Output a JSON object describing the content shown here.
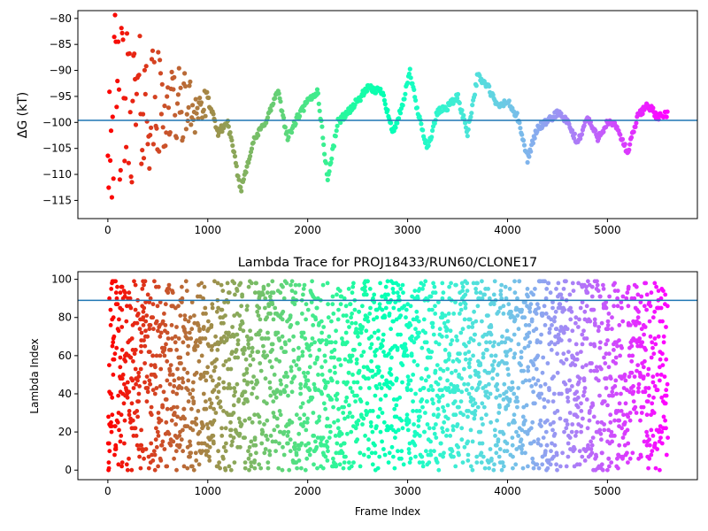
{
  "chart_data": [
    {
      "type": "scatter",
      "title": "",
      "xlabel": "",
      "ylabel": "ΔG (kT)",
      "xlim": [
        -300,
        5900
      ],
      "ylim": [
        -118.5,
        -78.5
      ],
      "x_ticks": [
        0,
        1000,
        2000,
        3000,
        4000,
        5000
      ],
      "x_tick_labels": [
        "0",
        "1000",
        "2000",
        "3000",
        "4000",
        "5000"
      ],
      "y_ticks": [
        -115,
        -110,
        -105,
        -100,
        -95,
        -90,
        -85,
        -80
      ],
      "y_tick_labels": [
        "−115",
        "−110",
        "−105",
        "−100",
        "−95",
        "−90",
        "−85",
        "−80"
      ],
      "hline": -99.6,
      "hline_color": "#1f77b4",
      "colormap": "rainbow",
      "x_range": [
        0,
        5600
      ],
      "grid": false,
      "trace_keypoints": [
        [
          0,
          -80
        ],
        [
          120,
          -92
        ],
        [
          250,
          -95
        ],
        [
          400,
          -93
        ],
        [
          600,
          -96
        ],
        [
          800,
          -97
        ],
        [
          950,
          -92
        ],
        [
          1100,
          -102
        ],
        [
          1200,
          -100
        ],
        [
          1330,
          -113
        ],
        [
          1450,
          -104
        ],
        [
          1600,
          -99
        ],
        [
          1700,
          -94
        ],
        [
          1800,
          -103
        ],
        [
          1900,
          -99
        ],
        [
          2000,
          -96
        ],
        [
          2100,
          -94
        ],
        [
          2200,
          -111
        ],
        [
          2300,
          -100
        ],
        [
          2450,
          -97
        ],
        [
          2600,
          -93.5
        ],
        [
          2750,
          -94
        ],
        [
          2850,
          -102
        ],
        [
          2950,
          -97
        ],
        [
          3020,
          -90
        ],
        [
          3100,
          -98
        ],
        [
          3200,
          -105
        ],
        [
          3300,
          -98
        ],
        [
          3400,
          -97
        ],
        [
          3500,
          -95
        ],
        [
          3600,
          -102
        ],
        [
          3700,
          -91
        ],
        [
          3800,
          -93
        ],
        [
          3900,
          -97
        ],
        [
          4000,
          -96
        ],
        [
          4100,
          -99
        ],
        [
          4200,
          -107
        ],
        [
          4300,
          -101
        ],
        [
          4400,
          -100
        ],
        [
          4500,
          -98
        ],
        [
          4600,
          -100
        ],
        [
          4700,
          -104
        ],
        [
          4800,
          -99
        ],
        [
          4900,
          -103
        ],
        [
          5000,
          -100
        ],
        [
          5100,
          -101
        ],
        [
          5200,
          -106
        ],
        [
          5300,
          -99
        ],
        [
          5400,
          -96.5
        ],
        [
          5500,
          -99
        ],
        [
          5600,
          -98.5
        ]
      ]
    },
    {
      "type": "scatter",
      "title": "Lambda Trace for PROJ18433/RUN60/CLONE17",
      "xlabel": "Frame Index",
      "ylabel": "Lambda Index",
      "xlim": [
        -300,
        5900
      ],
      "ylim": [
        -5,
        104
      ],
      "x_ticks": [
        0,
        1000,
        2000,
        3000,
        4000,
        5000
      ],
      "x_tick_labels": [
        "0",
        "1000",
        "2000",
        "3000",
        "4000",
        "5000"
      ],
      "y_ticks": [
        0,
        20,
        40,
        60,
        80,
        100
      ],
      "y_tick_labels": [
        "0",
        "20",
        "40",
        "60",
        "80",
        "100"
      ],
      "hline": 89,
      "hline_color": "#1f77b4",
      "colormap": "rainbow",
      "x_range": [
        0,
        5600
      ],
      "y_range": [
        0,
        99
      ],
      "grid": false
    }
  ]
}
